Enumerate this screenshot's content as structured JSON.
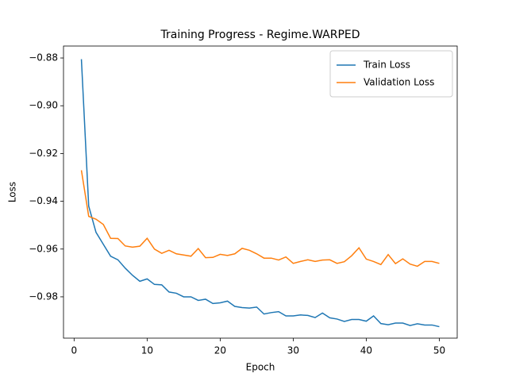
{
  "chart_data": {
    "type": "line",
    "title": "Training Progress - Regime.WARPED",
    "xlabel": "Epoch",
    "ylabel": "Loss",
    "x": [
      1,
      2,
      3,
      4,
      5,
      6,
      7,
      8,
      9,
      10,
      11,
      12,
      13,
      14,
      15,
      16,
      17,
      18,
      19,
      20,
      21,
      22,
      23,
      24,
      25,
      26,
      27,
      28,
      29,
      30,
      31,
      32,
      33,
      34,
      35,
      36,
      37,
      38,
      39,
      40,
      41,
      42,
      43,
      44,
      45,
      46,
      47,
      48,
      49,
      50
    ],
    "series": [
      {
        "name": "Train Loss",
        "color": "#1f77b4",
        "values": [
          -0.8805,
          -0.942,
          -0.953,
          -0.958,
          -0.963,
          -0.9645,
          -0.968,
          -0.971,
          -0.9735,
          -0.9725,
          -0.9748,
          -0.975,
          -0.978,
          -0.9785,
          -0.98,
          -0.98,
          -0.9815,
          -0.981,
          -0.9828,
          -0.9825,
          -0.9818,
          -0.984,
          -0.9845,
          -0.9847,
          -0.9843,
          -0.9872,
          -0.9866,
          -0.9862,
          -0.988,
          -0.988,
          -0.9876,
          -0.9878,
          -0.9887,
          -0.9868,
          -0.9888,
          -0.9893,
          -0.9903,
          -0.9895,
          -0.9895,
          -0.9902,
          -0.988,
          -0.9912,
          -0.9917,
          -0.991,
          -0.991,
          -0.992,
          -0.9913,
          -0.9918,
          -0.9918,
          -0.9925
        ]
      },
      {
        "name": "Validation Loss",
        "color": "#ff7f0e",
        "values": [
          -0.927,
          -0.9463,
          -0.9475,
          -0.9497,
          -0.9555,
          -0.9556,
          -0.9587,
          -0.9592,
          -0.9588,
          -0.9555,
          -0.96,
          -0.9618,
          -0.9605,
          -0.962,
          -0.9625,
          -0.963,
          -0.9598,
          -0.9636,
          -0.9635,
          -0.9622,
          -0.9627,
          -0.962,
          -0.9597,
          -0.9605,
          -0.962,
          -0.9638,
          -0.9638,
          -0.9646,
          -0.9633,
          -0.966,
          -0.9652,
          -0.9645,
          -0.9652,
          -0.9646,
          -0.9645,
          -0.966,
          -0.9653,
          -0.9628,
          -0.9595,
          -0.9642,
          -0.9652,
          -0.9665,
          -0.9623,
          -0.9661,
          -0.9641,
          -0.9663,
          -0.9672,
          -0.9652,
          -0.9652,
          -0.966
        ]
      }
    ],
    "xlim": [
      -1.45,
      52.45
    ],
    "xticks": [
      0,
      10,
      20,
      30,
      40,
      50
    ],
    "ylim": [
      -0.9973,
      -0.875
    ],
    "yticks": [
      {
        "value": -0.98,
        "label": "−0.98"
      },
      {
        "value": -0.96,
        "label": "−0.96"
      },
      {
        "value": -0.94,
        "label": "−0.94"
      },
      {
        "value": -0.92,
        "label": "−0.92"
      },
      {
        "value": -0.9,
        "label": "−0.90"
      },
      {
        "value": -0.88,
        "label": "−0.88"
      }
    ],
    "legend": "upper right",
    "grid": false
  }
}
